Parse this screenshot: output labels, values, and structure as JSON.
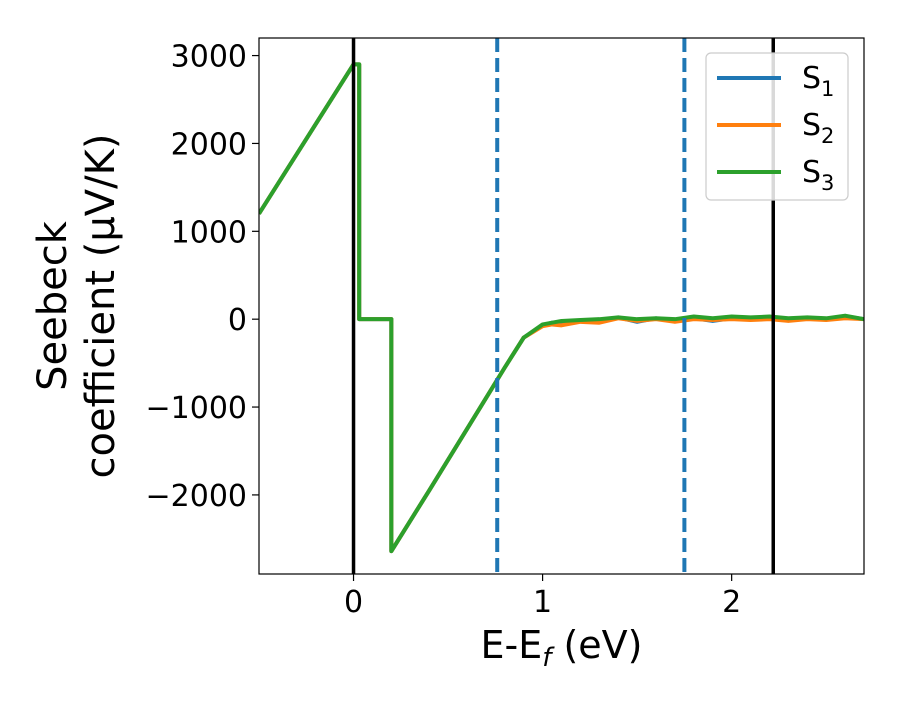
{
  "chart_data": {
    "type": "line",
    "title": "",
    "xlabel": "E-E$_f$ (eV)",
    "ylabel": "Seebeck\ncoefficient (μV/K)",
    "xlim": [
      -0.5,
      2.7
    ],
    "ylim": [
      -2900,
      3200
    ],
    "x_ticks": [
      0,
      1,
      2
    ],
    "y_ticks": [
      -2000,
      -1000,
      0,
      1000,
      2000,
      3000
    ],
    "x_tick_labels": [
      "0",
      "1",
      "2"
    ],
    "y_tick_labels": [
      "−2000",
      "−1000",
      "0",
      "1000",
      "2000",
      "3000"
    ],
    "grid": false,
    "legend": "top-right",
    "vertical_lines": [
      {
        "x": 0.0,
        "style": "solid",
        "color": "#000000"
      },
      {
        "x": 0.76,
        "style": "dashed",
        "color": "#1f77b4"
      },
      {
        "x": 1.75,
        "style": "dashed",
        "color": "#1f77b4"
      },
      {
        "x": 2.22,
        "style": "solid",
        "color": "#000000"
      }
    ],
    "series": [
      {
        "name": "S1",
        "color": "#1f77b4",
        "x": [
          -0.5,
          0.0,
          0.03,
          0.03,
          0.2,
          0.2,
          0.4,
          0.6,
          0.8,
          0.9,
          1.0,
          1.05,
          1.1,
          1.2,
          1.3,
          1.4,
          1.5,
          1.6,
          1.7,
          1.8,
          1.9,
          2.0,
          2.1,
          2.2,
          2.3,
          2.4,
          2.5,
          2.6,
          2.7
        ],
        "y": [
          1200,
          2900,
          2900,
          0,
          0,
          -2640,
          -1950,
          -1250,
          -550,
          -210,
          -70,
          -40,
          -60,
          -20,
          -30,
          20,
          -30,
          10,
          -20,
          10,
          -20,
          10,
          0,
          20,
          -10,
          10,
          0,
          30,
          0
        ]
      },
      {
        "name": "S2",
        "color": "#ff7f0e",
        "x": [
          -0.5,
          0.0,
          0.03,
          0.03,
          0.2,
          0.2,
          0.4,
          0.6,
          0.8,
          0.9,
          1.0,
          1.05,
          1.1,
          1.2,
          1.3,
          1.4,
          1.5,
          1.6,
          1.7,
          1.8,
          1.9,
          2.0,
          2.1,
          2.2,
          2.3,
          2.4,
          2.5,
          2.6,
          2.7
        ],
        "y": [
          1200,
          2900,
          2900,
          0,
          0,
          -2640,
          -1950,
          -1250,
          -550,
          -210,
          -80,
          -60,
          -70,
          -30,
          -40,
          10,
          -20,
          0,
          -30,
          0,
          -10,
          0,
          -10,
          0,
          -20,
          0,
          -10,
          10,
          0
        ]
      },
      {
        "name": "S3",
        "color": "#2ca02c",
        "x": [
          -0.5,
          0.0,
          0.03,
          0.03,
          0.2,
          0.2,
          0.4,
          0.6,
          0.8,
          0.9,
          1.0,
          1.05,
          1.1,
          1.2,
          1.3,
          1.4,
          1.5,
          1.6,
          1.7,
          1.8,
          1.9,
          2.0,
          2.1,
          2.2,
          2.3,
          2.4,
          2.5,
          2.6,
          2.7
        ],
        "y": [
          1200,
          2900,
          2900,
          0,
          0,
          -2640,
          -1950,
          -1250,
          -550,
          -210,
          -60,
          -40,
          -20,
          -10,
          0,
          20,
          0,
          10,
          0,
          30,
          10,
          30,
          20,
          30,
          10,
          20,
          10,
          40,
          0
        ]
      }
    ]
  },
  "labels": {
    "ylabel_line1": "Seebeck",
    "ylabel_line2": "coefficient  (μV/K)",
    "xlabel_main": "E-E",
    "xlabel_sub": "f",
    "xlabel_unit": " (eV)",
    "legend_items": [
      {
        "base": "S",
        "sub": "1"
      },
      {
        "base": "S",
        "sub": "2"
      },
      {
        "base": "S",
        "sub": "3"
      }
    ]
  }
}
